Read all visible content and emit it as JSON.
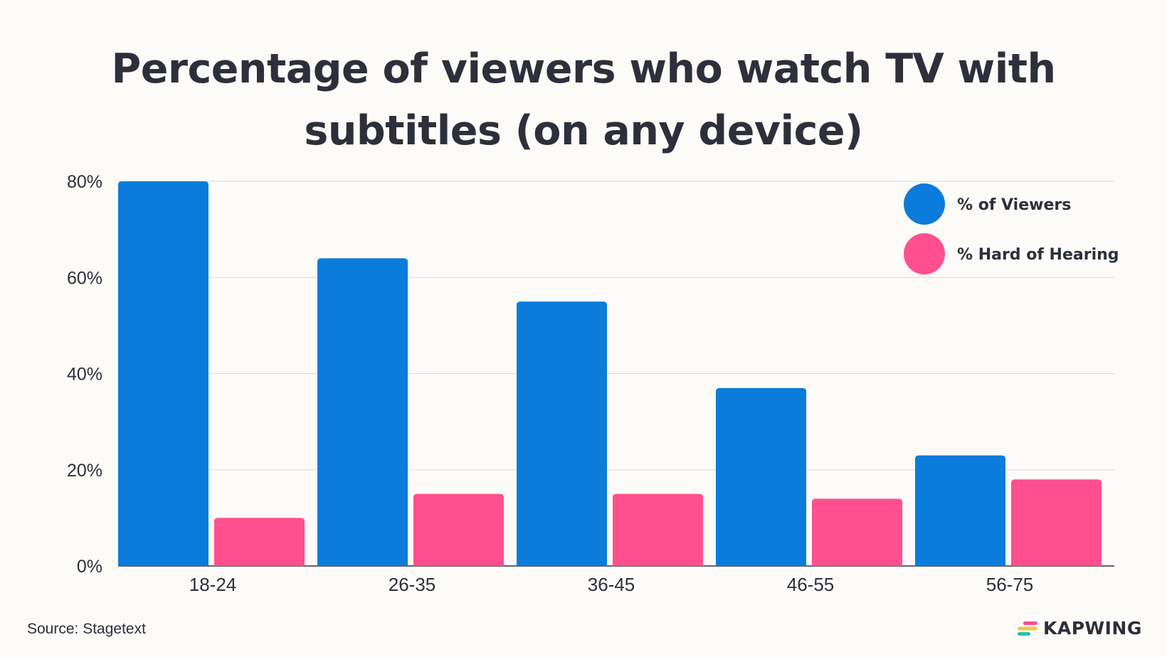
{
  "chart_data": {
    "type": "bar",
    "title": "Percentage of viewers who watch TV with subtitles (on any device)",
    "categories": [
      "18-24",
      "26-35",
      "36-45",
      "46-55",
      "56-75"
    ],
    "series": [
      {
        "name": "% of Viewers",
        "values": [
          80,
          64,
          55,
          37,
          23
        ],
        "color": "#0b7cdb"
      },
      {
        "name": "% Hard of Hearing",
        "values": [
          10,
          15,
          15,
          14,
          18
        ],
        "color": "#ff4f8f"
      }
    ],
    "yticks": [
      "0%",
      "20%",
      "40%",
      "60%",
      "80%"
    ],
    "ylim": [
      0,
      80
    ],
    "xlabel": "",
    "ylabel": "",
    "grid": true,
    "legend_position": "top-right"
  },
  "source": "Source: Stagetext",
  "brand": {
    "name": "KAPWING",
    "colors": [
      "#ff4f8f",
      "#f5c542",
      "#22c3b5"
    ]
  }
}
